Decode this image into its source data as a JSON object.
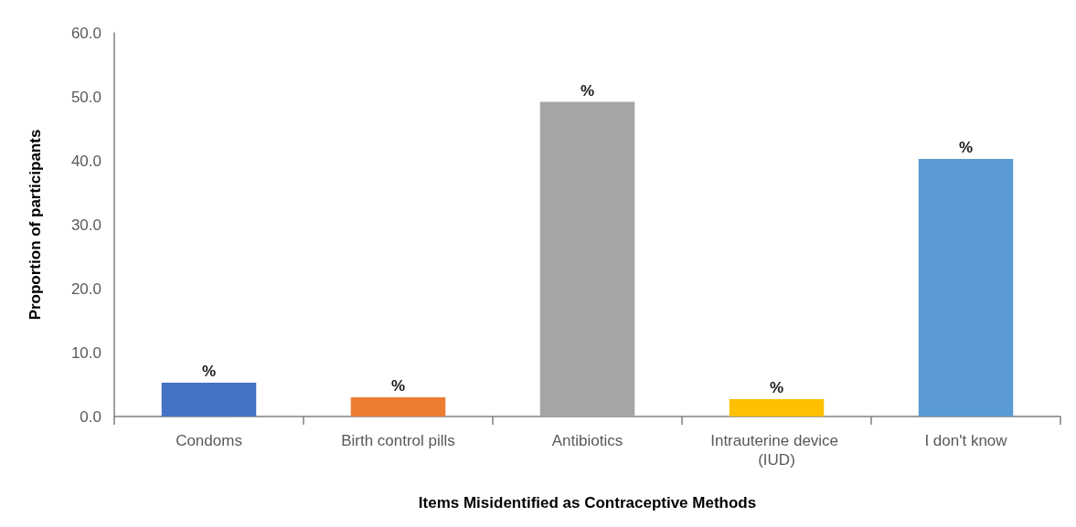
{
  "chart_data": {
    "type": "bar",
    "xlabel": "Items Misidentified as Contraceptive Methods",
    "ylabel": "Proportion of participants",
    "categories": [
      "Condoms",
      "Birth control pills",
      "Antibiotics",
      "Intrauterine device (IUD)",
      "I don't know"
    ],
    "values": [
      5.3,
      3.0,
      49.2,
      2.7,
      40.3
    ],
    "colors": [
      "#4472c4",
      "#ed7d31",
      "#a5a5a5",
      "#ffc000",
      "#5b9bd5"
    ],
    "value_labels": [
      "%",
      "%",
      "%",
      "%",
      "%"
    ],
    "ylim": [
      0,
      60
    ],
    "yticks": [
      {
        "value": 0,
        "label": "0.0"
      },
      {
        "value": 10,
        "label": "10.0"
      },
      {
        "value": 20,
        "label": "20.0"
      },
      {
        "value": 30,
        "label": "30.0"
      },
      {
        "value": 40,
        "label": "40.0"
      },
      {
        "value": 50,
        "label": "50.0"
      },
      {
        "value": 60,
        "label": "60.0"
      }
    ],
    "grid": false
  }
}
